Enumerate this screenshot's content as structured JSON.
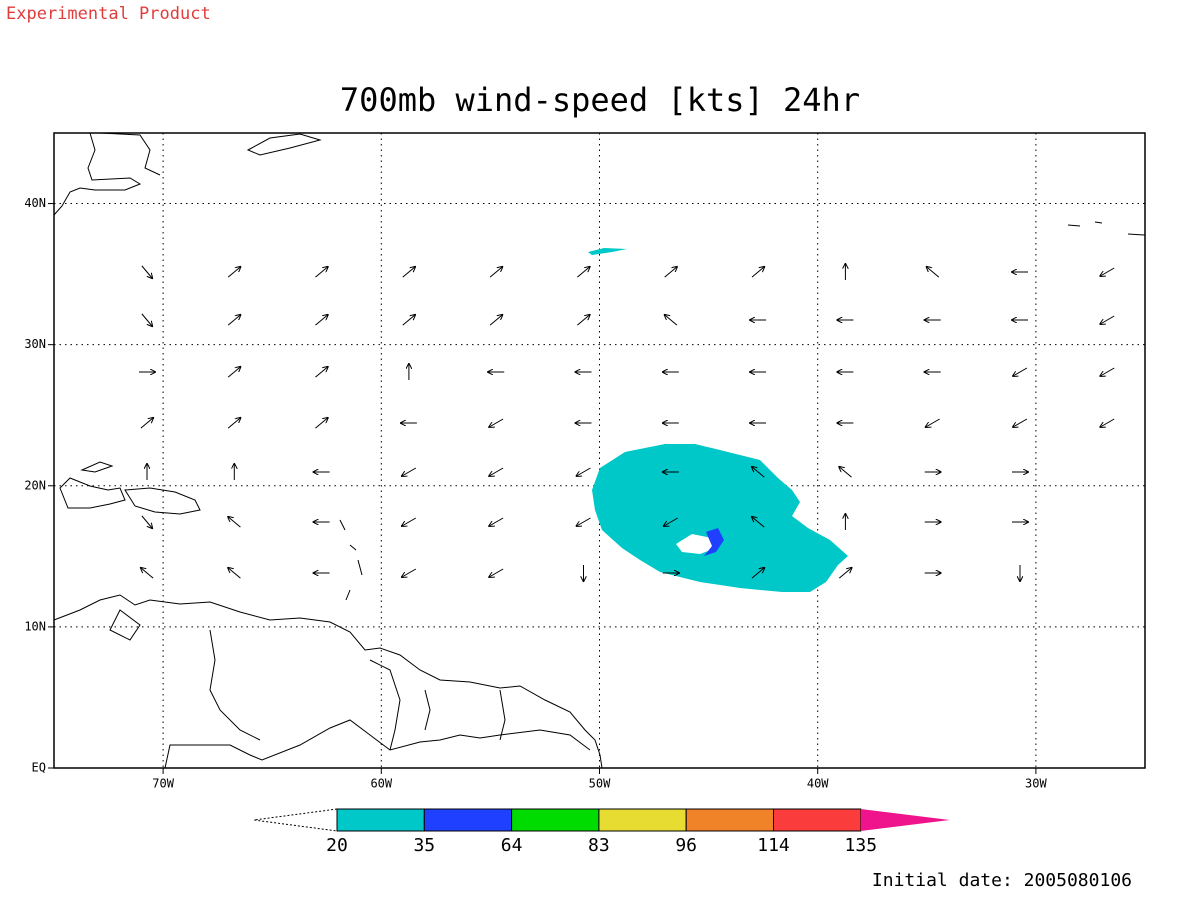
{
  "header": {
    "note": "Experimental Product"
  },
  "map": {
    "title": "700mb wind-speed [kts] 24hr",
    "xlim": [
      -75,
      -25
    ],
    "ylim": [
      0,
      45
    ],
    "xticks": [
      {
        "value": -70,
        "label": "70W"
      },
      {
        "value": -60,
        "label": "60W"
      },
      {
        "value": -50,
        "label": "50W"
      },
      {
        "value": -40,
        "label": "40W"
      },
      {
        "value": -30,
        "label": "30W"
      }
    ],
    "yticks": [
      {
        "value": 0,
        "label": "EQ"
      },
      {
        "value": 10,
        "label": "10N"
      },
      {
        "value": 20,
        "label": "20N"
      },
      {
        "value": 30,
        "label": "30N"
      },
      {
        "value": 40,
        "label": "40N"
      }
    ],
    "grid": true
  },
  "colorbar": {
    "levels": [
      20,
      35,
      64,
      83,
      96,
      114,
      135
    ],
    "colors": [
      "#00c8c8",
      "#2040ff",
      "#00dc00",
      "#e6dc32",
      "#f08228",
      "#fa3c3c",
      "#f0148c"
    ]
  },
  "footer": {
    "date": "Initial date: 2005080106"
  }
}
